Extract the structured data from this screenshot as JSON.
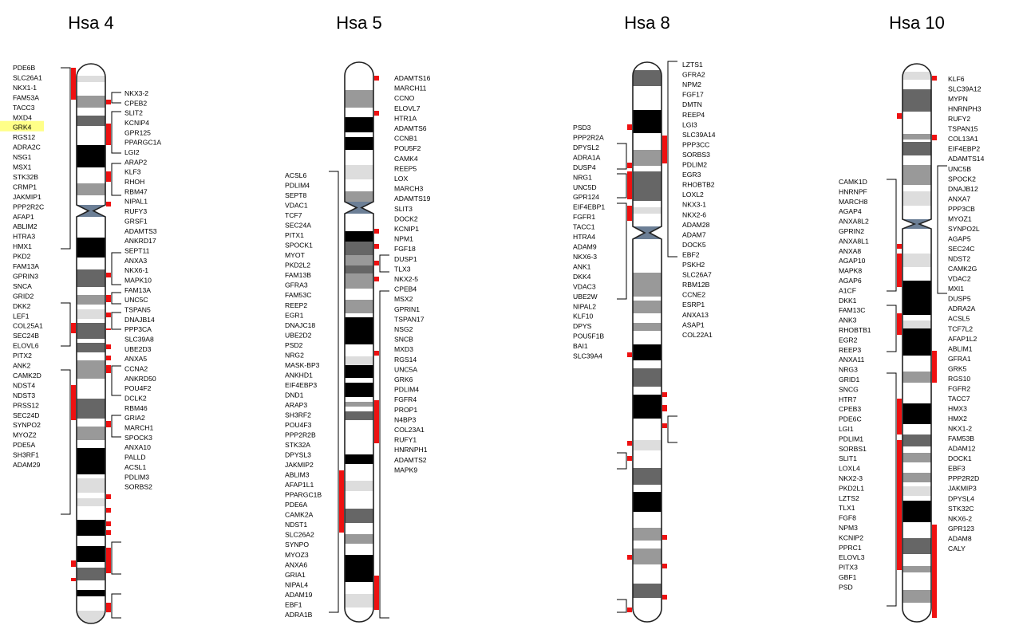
{
  "colors": {
    "marker": "#ee1111",
    "highlight": "#ffff88",
    "outline": "#222222",
    "centromere": "#6c7f96"
  },
  "chromosomes": [
    {
      "title": "Hsa 4",
      "left_genes": [
        "PDE6B",
        "SLC26A1",
        "NKX1-1",
        "FAM53A",
        "TACC3",
        "MXD4",
        "GRK4",
        "RGS12",
        "ADRA2C",
        "NSG1",
        "MSX1",
        "STK32B",
        "CRMP1",
        "JAKMIP1",
        "PPP2R2C",
        "AFAP1",
        "ABLIM2",
        "HTRA3",
        "HMX1",
        "PKD2",
        "FAM13A",
        "GPRIN3",
        "SNCA",
        "GRID2",
        "DKK2",
        "LEF1",
        "COL25A1",
        "SEC24B",
        "ELOVL6",
        "PITX2",
        "ANK2",
        "CAMK2D",
        "NDST4",
        "NDST3",
        "PRSS12",
        "SEC24D",
        "SYNPO2",
        "MYOZ2",
        "PDE5A",
        "SH3RF1",
        "ADAM29"
      ],
      "highlighted_gene": "GRK4",
      "right_genes": [
        "NKX3-2",
        "CPEB2",
        "SLIT2",
        "KCNIP4",
        "GPR125",
        "PPARGC1A",
        "LGI2",
        "ARAP2",
        "KLF3",
        "RHOH",
        "RBM47",
        "NIPAL1",
        "RUFY3",
        "GRSF1",
        "ADAMTS3",
        "ANKRD17",
        "SEPT11",
        "ANXA3",
        "NKX6-1",
        "MAPK10",
        "FAM13A",
        "UNC5C",
        "TSPAN5",
        "DNAJB14",
        "PPP3CA",
        "SLC39A8",
        "UBE2D3",
        "ANXA5",
        "CCNA2",
        "ANKRD50",
        "POU4F2",
        "DCLK2",
        "RBM46",
        "GRIA2",
        "MARCH1",
        "SPOCK3",
        "ANXA10",
        "PALLD",
        "ACSL1",
        "PDLIM3",
        "SORBS2"
      ]
    },
    {
      "title": "Hsa 5",
      "left_genes": [
        "ACSL6",
        "PDLIM4",
        "SEPT8",
        "VDAC1",
        "TCF7",
        "SEC24A",
        "PITX1",
        "SPOCK1",
        "MYOT",
        "PKD2L2",
        "FAM13B",
        "GFRA3",
        "FAM53C",
        "REEP2",
        "EGR1",
        "DNAJC18",
        "UBE2D2",
        "PSD2",
        "NRG2",
        "MASK-BP3",
        "ANKHD1",
        "EIF4EBP3",
        "DND1",
        "ARAP3",
        "SH3RF2",
        "POU4F3",
        "PPP2R2B",
        "STK32A",
        "DPYSL3",
        "JAKMIP2",
        "ABLIM3",
        "AFAP1L1",
        "PPARGC1B",
        "PDE6A",
        "CAMK2A",
        "NDST1",
        "SLC26A2",
        "SYNPO",
        "MYOZ3",
        "ANXA6",
        "GRIA1",
        "NIPAL4",
        "ADAM19",
        "EBF1",
        "ADRA1B"
      ],
      "right_genes": [
        "ADAMTS16",
        "MARCH11",
        "CCNO",
        "ELOVL7",
        "HTR1A",
        "ADAMTS6",
        "CCNB1",
        "POU5F2",
        "CAMK4",
        "REEP5",
        "LOX",
        "MARCH3",
        "ADAMTS19",
        "SLIT3",
        "DOCK2",
        "KCNIP1",
        "NPM1",
        "FGF18",
        "DUSP1",
        "TLX3",
        "NKX2-5",
        "CPEB4",
        "MSX2",
        "GPRIN1",
        "TSPAN17",
        "NSG2",
        "SNCB",
        "MXD3",
        "RGS14",
        "UNC5A",
        "GRK6",
        "PDLIM4",
        "FGFR4",
        "PROP1",
        "N4BP3",
        "COL23A1",
        "RUFY1",
        "HNRNPH1",
        "ADAMTS2",
        "MAPK9"
      ]
    },
    {
      "title": "Hsa 8",
      "left_genes": [
        "PSD3",
        "PPP2R2A",
        "DPYSL2",
        "ADRA1A",
        "DUSP4",
        "NRG1",
        "UNC5D",
        "GPR124",
        "EIF4EBP1",
        "FGFR1",
        "TACC1",
        "HTRA4",
        "ADAM9",
        "NKX6-3",
        "ANK1",
        "DKK4",
        "VDAC3",
        "UBE2W",
        "NIPAL2",
        "KLF10",
        "DPYS",
        "POU5F1B",
        "BAI1",
        "SLC39A4"
      ],
      "right_genes": [
        "LZTS1",
        "GFRA2",
        "NPM2",
        "FGF17",
        "DMTN",
        "REEP4",
        "LGI3",
        "SLC39A14",
        "PPP3CC",
        "SORBS3",
        "PDLIM2",
        "EGR3",
        "RHOBTB2",
        "LOXL2",
        "NKX3-1",
        "NKX2-6",
        "ADAM28",
        "ADAM7",
        "DOCK5",
        "EBF2",
        "PSKH2",
        "SLC26A7",
        "RBM12B",
        "CCNE2",
        "ESRP1",
        "ANXA13",
        "ASAP1",
        "COL22A1"
      ]
    },
    {
      "title": "Hsa 10",
      "left_genes": [
        "CAMK1D",
        "HNRNPF",
        "MARCH8",
        "AGAP4",
        "ANXA8L2",
        "GPRIN2",
        "ANXA8L1",
        "ANXA8",
        "AGAP10",
        "MAPK8",
        "AGAP6",
        "A1CF",
        "DKK1",
        "FAM13C",
        "ANK3",
        "RHOBTB1",
        "EGR2",
        "REEP3",
        "ANXA11",
        "NRG3",
        "GRID1",
        "SNCG",
        "HTR7",
        "CPEB3",
        "PDE6C",
        "LGI1",
        "PDLIM1",
        "SORBS1",
        "SLIT1",
        "LOXL4",
        "NKX2-3",
        "PKD2L1",
        "LZTS2",
        "TLX1",
        "FGF8",
        "NPM3",
        "KCNIP2",
        "PPRC1",
        "ELOVL3",
        "PITX3",
        "GBF1",
        "PSD"
      ],
      "right_genes": [
        "KLF6",
        "SLC39A12",
        "MYPN",
        "HNRNPH3",
        "RUFY2",
        "TSPAN15",
        "COL13A1",
        "EIF4EBP2",
        "ADAMTS14",
        "UNC5B",
        "SPOCK2",
        "DNAJB12",
        "ANXA7",
        "PPP3CB",
        "MYOZ1",
        "SYNPO2L",
        "AGAP5",
        "SEC24C",
        "NDST2",
        "CAMK2G",
        "VDAC2",
        "MXI1",
        "DUSP5",
        "ADRA2A",
        "ACSL5",
        "TCF7L2",
        "AFAP1L2",
        "ABLIM1",
        "GFRA1",
        "GRK5",
        "RGS10",
        "FGFR2",
        "TACC7",
        "HMX3",
        "HMX2",
        "NKX1-2",
        "FAM53B",
        "ADAM12",
        "DOCK1",
        "EBF3",
        "PPP2R2D",
        "JAKMIP3",
        "DPYSL4",
        "STK32C",
        "NKX6-2",
        "GPR123",
        "ADAM8",
        "CALY"
      ]
    }
  ]
}
